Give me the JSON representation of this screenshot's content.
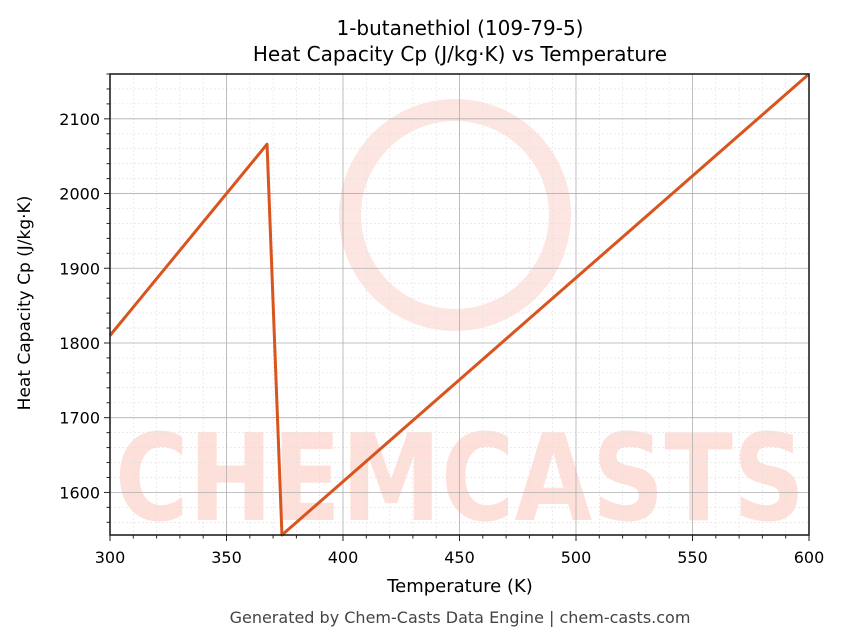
{
  "title_line1": "1-butanethiol (109-79-5)",
  "title_line2": "Heat Capacity Cp (J/kg·K) vs Temperature",
  "footer": "Generated by Chem-Casts Data Engine | chem-casts.com",
  "watermark": "CHEMCASTS",
  "colors": {
    "line": "#d9541e",
    "watermark": "#fde0da",
    "grid_major": "#b0b0b0",
    "grid_minor": "#e0e0e0"
  },
  "chart_data": {
    "type": "line",
    "title": "1-butanethiol (109-79-5)\nHeat Capacity Cp (J/kg·K) vs Temperature",
    "xlabel": "Temperature (K)",
    "ylabel": "Heat Capacity Cp (J/kg·K)",
    "xlim": [
      300,
      600
    ],
    "ylim": [
      1543,
      2160
    ],
    "xticks": [
      300,
      350,
      400,
      450,
      500,
      550,
      600
    ],
    "yticks": [
      1600,
      1700,
      1800,
      1900,
      2000,
      2100
    ],
    "grid": true,
    "legend": null,
    "series": [
      {
        "name": "Cp",
        "x": [
          300,
          367.4,
          373.8,
          600
        ],
        "y": [
          1810,
          2066,
          1543,
          2160
        ]
      }
    ]
  }
}
